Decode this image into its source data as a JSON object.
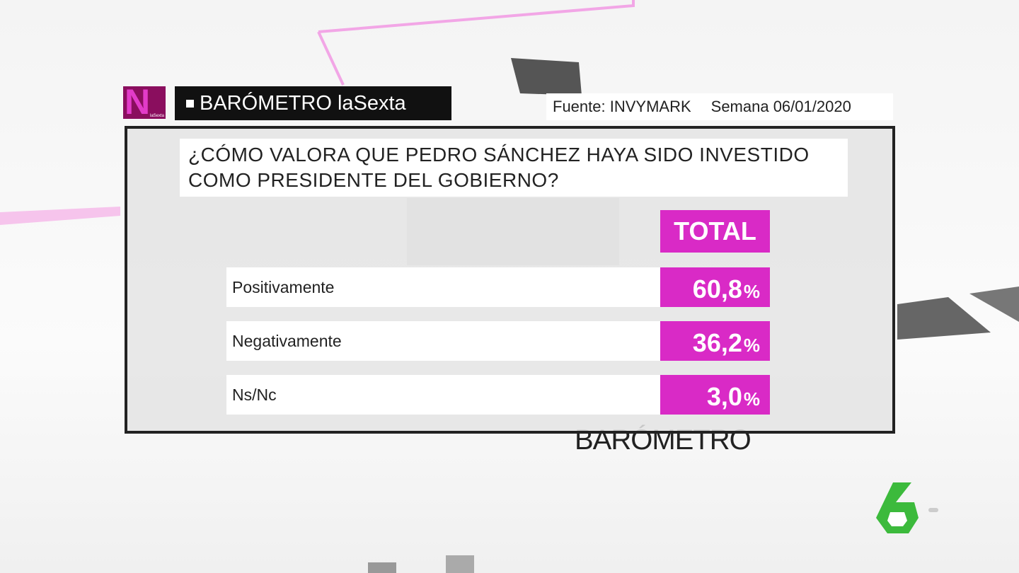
{
  "header": {
    "logo": "N",
    "logo_small": "laSexta",
    "title": "BARÓMETRO laSexta",
    "source": "Fuente: INVYMARK",
    "week": "Semana 06/01/2020"
  },
  "question": {
    "line1": "¿CÓMO VALORA QUE PEDRO SÁNCHEZ HAYA SIDO INVESTIDO",
    "line2": "COMO PRESIDENTE DEL GOBIERNO?"
  },
  "table": {
    "column": "TOTAL",
    "rows": [
      {
        "label": "Positivamente",
        "value": "60,8",
        "unit": "%"
      },
      {
        "label": "Negativamente",
        "value": "36,2",
        "unit": "%"
      },
      {
        "label": "Ns/Nc",
        "value": "3,0",
        "unit": "%"
      }
    ]
  },
  "background": {
    "label": "BARÓMETRO"
  }
}
